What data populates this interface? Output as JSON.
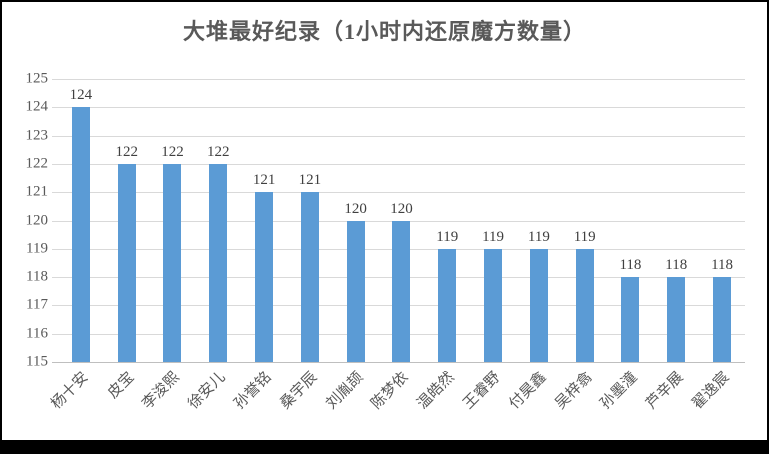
{
  "title": "大堆最好纪录（1小时内还原魔方数量）",
  "colors": {
    "bar": "#5B9BD5",
    "gridline": "#D9D9D9",
    "axis_line": "#BFBFBF",
    "title_text": "#595959",
    "tick_text": "#595959",
    "data_label_text": "#404040",
    "frame": "#000000"
  },
  "chart_data": {
    "type": "bar",
    "title": "大堆最好纪录（1小时内还原魔方数量）",
    "categories": [
      "杨十安",
      "皮宝",
      "李浚熙",
      "徐安儿",
      "孙誉铭",
      "桑宇辰",
      "刘胤颉",
      "陈梦依",
      "温皓然",
      "王睿野",
      "付昊鑫",
      "吴梓翕",
      "孙墨潼",
      "芦辛展",
      "翟逸宸"
    ],
    "values": [
      124,
      122,
      122,
      122,
      121,
      121,
      120,
      120,
      119,
      119,
      119,
      119,
      118,
      118,
      118
    ],
    "data_labels": [
      "124",
      "122",
      "122",
      "122",
      "121",
      "121",
      "120",
      "120",
      "119",
      "119",
      "119",
      "119",
      "118",
      "118",
      "118"
    ],
    "xlabel": "",
    "ylabel": "",
    "ylim": [
      115,
      125
    ],
    "yticks": [
      115,
      116,
      117,
      118,
      119,
      120,
      121,
      122,
      123,
      124,
      125
    ],
    "grid": true,
    "legend": false,
    "bar_color": "#5B9BD5",
    "data_labels_shown": true,
    "category_label_rotation_deg": 45
  }
}
